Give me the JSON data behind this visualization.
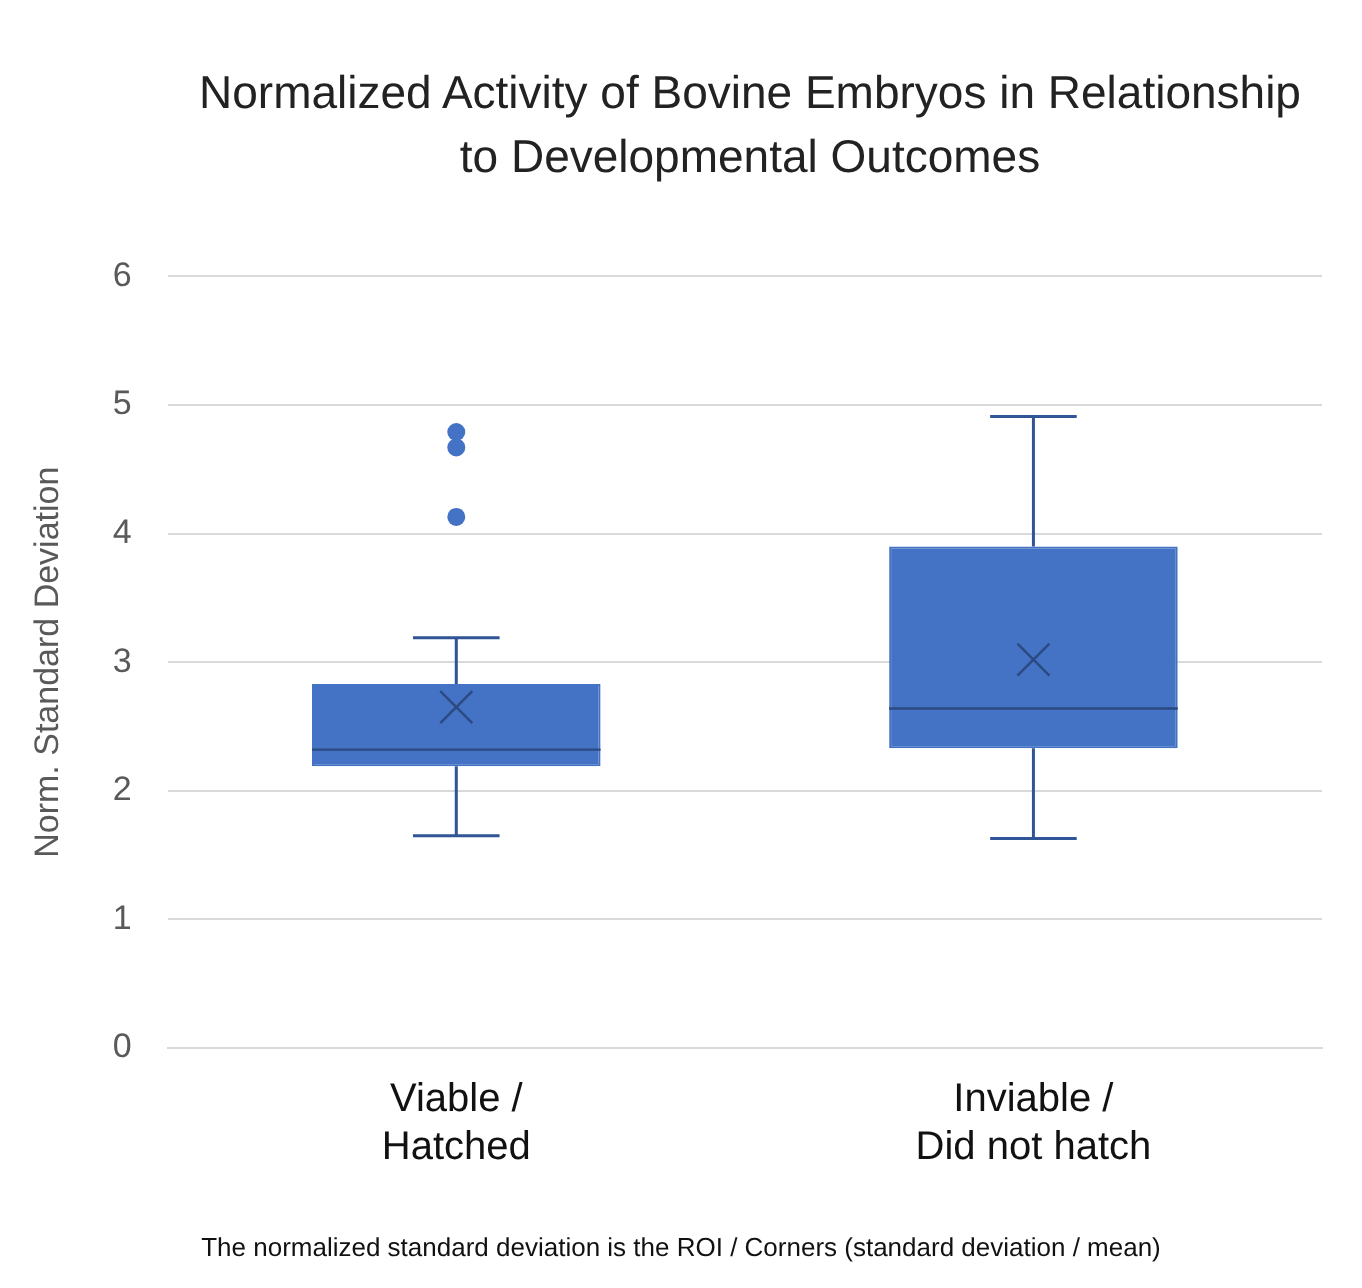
{
  "chart_data": {
    "type": "box",
    "title": "Normalized Activity of Bovine Embryos in Relationship to Developmental Outcomes",
    "ylabel": "Norm. Standard Deviation",
    "categories": [
      "Viable / Hatched",
      "Inviable / Did not hatch"
    ],
    "series": [
      {
        "color": "#4472c4",
        "boxes": [
          {
            "low": 1.65,
            "q1": 2.19,
            "median": 2.32,
            "q3": 2.83,
            "high": 3.19,
            "mean": 2.65,
            "outliers": [
              4.79,
              4.67,
              4.13
            ]
          },
          {
            "low": 1.63,
            "q1": 2.33,
            "median": 2.64,
            "q3": 3.9,
            "high": 4.91,
            "mean": 3.02
          }
        ]
      }
    ],
    "ylim": [
      0,
      6
    ],
    "yticks": [
      0,
      1,
      2,
      3,
      4,
      5,
      6
    ],
    "grid": "y",
    "legend": false,
    "annotations": [
      "The normalized standard deviation is the ROI / Corners (standard deviation / mean)"
    ]
  }
}
